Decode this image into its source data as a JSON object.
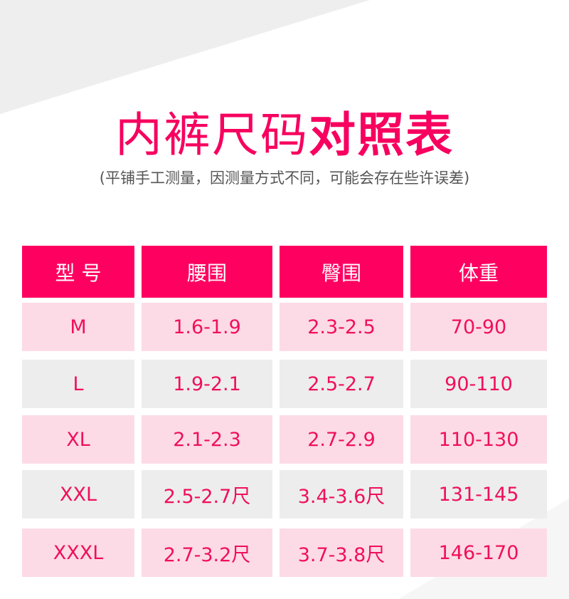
{
  "title_regular": "内裤尺码",
  "title_bold": "对照表",
  "subtitle": "(平铺手工测量，因测量方式不同，可能会存在些许误差)",
  "colors": {
    "accent": "#fe0060",
    "row_pink": "#fddbe6",
    "row_gray": "#ededed"
  },
  "table": {
    "headers": [
      "型 号",
      "腰围",
      "臀围",
      "体重"
    ],
    "rows": [
      [
        "M",
        "1.6-1.9",
        "2.3-2.5",
        "70-90"
      ],
      [
        "L",
        "1.9-2.1",
        "2.5-2.7",
        "90-110"
      ],
      [
        "XL",
        "2.1-2.3",
        "2.7-2.9",
        "110-130"
      ],
      [
        "XXL",
        "2.5-2.7尺",
        "3.4-3.6尺",
        "131-145"
      ],
      [
        "XXXL",
        "2.7-3.2尺",
        "3.7-3.8尺",
        "146-170"
      ]
    ]
  }
}
